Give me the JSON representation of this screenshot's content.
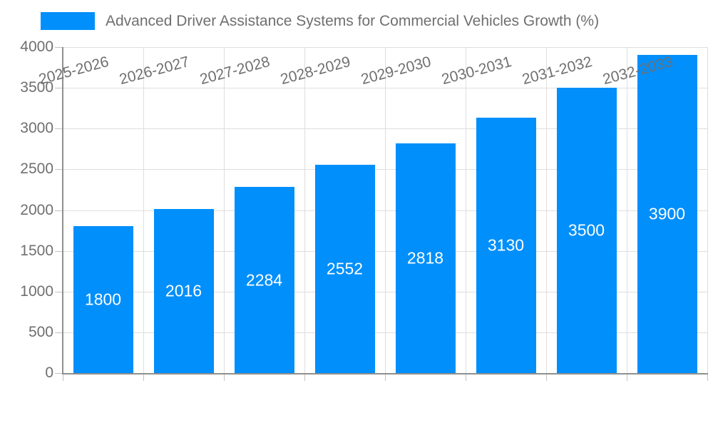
{
  "legend": {
    "label": "Advanced Driver Assistance Systems for Commercial Vehicles Growth (%)"
  },
  "colors": {
    "bar": "#008FFB",
    "bar_label": "#FFFFFF",
    "grid": "#DEDEDE",
    "axis": "#8F8F8F",
    "tick": "#C2C2C2",
    "text": "#6F6F6F",
    "background": "#FFFFFF"
  },
  "chart_data": {
    "type": "bar",
    "title": "",
    "xlabel": "",
    "ylabel": "",
    "categories": [
      "2025-2026",
      "2026-2027",
      "2027-2028",
      "2028-2029",
      "2029-2030",
      "2030-2031",
      "2031-2032",
      "2032-2033"
    ],
    "series": [
      {
        "name": "Advanced Driver Assistance Systems for Commercial Vehicles Growth (%)",
        "values": [
          1800,
          2016,
          2284,
          2552,
          2818,
          3130,
          3500,
          3900
        ]
      }
    ],
    "bar_value_labels": [
      "1800",
      "2016",
      "2284",
      "2552",
      "2818",
      "3130",
      "3500",
      "3900"
    ],
    "bar_labels_position": "inside-center",
    "ylim": [
      0,
      4000
    ],
    "ytick_interval": 500,
    "ytick_labels": [
      "0",
      "500",
      "1000",
      "1500",
      "2000",
      "2500",
      "3000",
      "3500",
      "4000"
    ],
    "xtick_rotation_deg": -15,
    "grid": true,
    "legend_position": "top-left"
  }
}
